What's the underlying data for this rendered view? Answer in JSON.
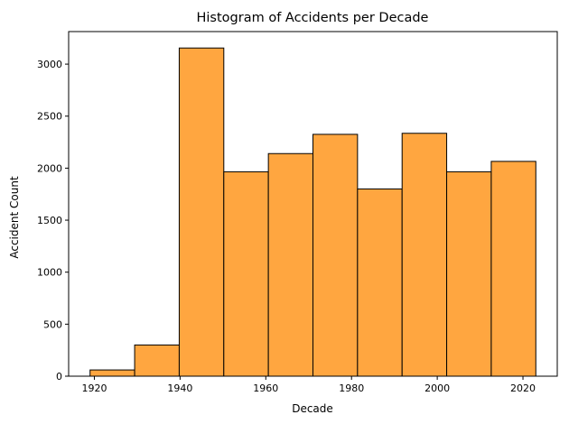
{
  "chart_data": {
    "type": "bar",
    "title": "Histogram of Accidents per Decade",
    "xlabel": "Decade",
    "ylabel": "Accident Count",
    "bin_edges": [
      1919,
      1929.4,
      1939.8,
      1950.2,
      1960.6,
      1971,
      1981.4,
      1991.8,
      2002.2,
      2012.6,
      2023
    ],
    "values": [
      60,
      300,
      3155,
      1965,
      2140,
      2325,
      1800,
      2335,
      1965,
      2065
    ],
    "xlim": [
      1914,
      2028
    ],
    "ylim": [
      0,
      3313
    ],
    "xticks": [
      1920,
      1940,
      1960,
      1980,
      2000,
      2020
    ],
    "yticks": [
      0,
      500,
      1000,
      1500,
      2000,
      2500,
      3000
    ],
    "bar_color": "#ffa640",
    "edge_color": "#000000",
    "grid": false,
    "legend": "none"
  }
}
